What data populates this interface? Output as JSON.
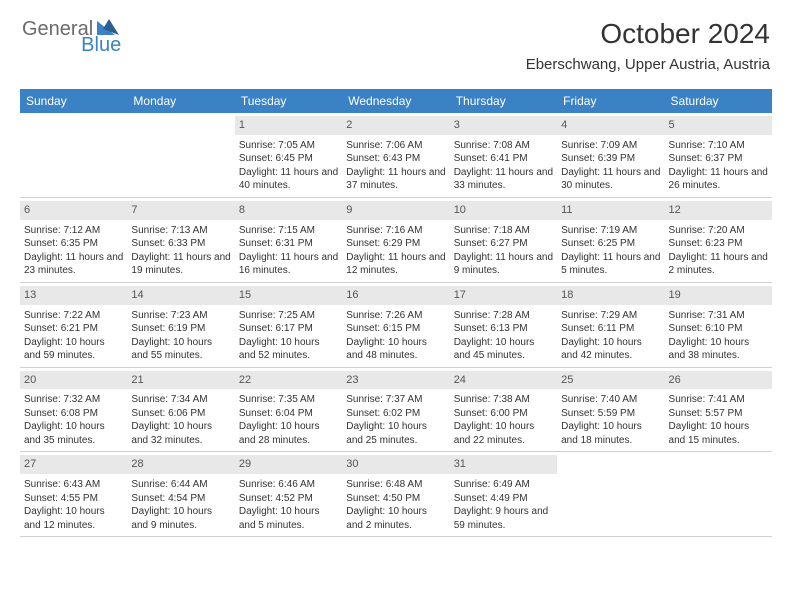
{
  "brand": {
    "part1": "General",
    "part2": "Blue"
  },
  "title": "October 2024",
  "location": "Eberschwang, Upper Austria, Austria",
  "colors": {
    "header_bg": "#3b82c4",
    "header_text": "#ffffff",
    "daynum_bg": "#e8e8e8",
    "border": "#cfcfcf",
    "text": "#333333"
  },
  "daynames": [
    "Sunday",
    "Monday",
    "Tuesday",
    "Wednesday",
    "Thursday",
    "Friday",
    "Saturday"
  ],
  "weeks": [
    [
      {
        "n": "",
        "sr": "",
        "ss": "",
        "dl": ""
      },
      {
        "n": "",
        "sr": "",
        "ss": "",
        "dl": ""
      },
      {
        "n": "1",
        "sr": "Sunrise: 7:05 AM",
        "ss": "Sunset: 6:45 PM",
        "dl": "Daylight: 11 hours and 40 minutes."
      },
      {
        "n": "2",
        "sr": "Sunrise: 7:06 AM",
        "ss": "Sunset: 6:43 PM",
        "dl": "Daylight: 11 hours and 37 minutes."
      },
      {
        "n": "3",
        "sr": "Sunrise: 7:08 AM",
        "ss": "Sunset: 6:41 PM",
        "dl": "Daylight: 11 hours and 33 minutes."
      },
      {
        "n": "4",
        "sr": "Sunrise: 7:09 AM",
        "ss": "Sunset: 6:39 PM",
        "dl": "Daylight: 11 hours and 30 minutes."
      },
      {
        "n": "5",
        "sr": "Sunrise: 7:10 AM",
        "ss": "Sunset: 6:37 PM",
        "dl": "Daylight: 11 hours and 26 minutes."
      }
    ],
    [
      {
        "n": "6",
        "sr": "Sunrise: 7:12 AM",
        "ss": "Sunset: 6:35 PM",
        "dl": "Daylight: 11 hours and 23 minutes."
      },
      {
        "n": "7",
        "sr": "Sunrise: 7:13 AM",
        "ss": "Sunset: 6:33 PM",
        "dl": "Daylight: 11 hours and 19 minutes."
      },
      {
        "n": "8",
        "sr": "Sunrise: 7:15 AM",
        "ss": "Sunset: 6:31 PM",
        "dl": "Daylight: 11 hours and 16 minutes."
      },
      {
        "n": "9",
        "sr": "Sunrise: 7:16 AM",
        "ss": "Sunset: 6:29 PM",
        "dl": "Daylight: 11 hours and 12 minutes."
      },
      {
        "n": "10",
        "sr": "Sunrise: 7:18 AM",
        "ss": "Sunset: 6:27 PM",
        "dl": "Daylight: 11 hours and 9 minutes."
      },
      {
        "n": "11",
        "sr": "Sunrise: 7:19 AM",
        "ss": "Sunset: 6:25 PM",
        "dl": "Daylight: 11 hours and 5 minutes."
      },
      {
        "n": "12",
        "sr": "Sunrise: 7:20 AM",
        "ss": "Sunset: 6:23 PM",
        "dl": "Daylight: 11 hours and 2 minutes."
      }
    ],
    [
      {
        "n": "13",
        "sr": "Sunrise: 7:22 AM",
        "ss": "Sunset: 6:21 PM",
        "dl": "Daylight: 10 hours and 59 minutes."
      },
      {
        "n": "14",
        "sr": "Sunrise: 7:23 AM",
        "ss": "Sunset: 6:19 PM",
        "dl": "Daylight: 10 hours and 55 minutes."
      },
      {
        "n": "15",
        "sr": "Sunrise: 7:25 AM",
        "ss": "Sunset: 6:17 PM",
        "dl": "Daylight: 10 hours and 52 minutes."
      },
      {
        "n": "16",
        "sr": "Sunrise: 7:26 AM",
        "ss": "Sunset: 6:15 PM",
        "dl": "Daylight: 10 hours and 48 minutes."
      },
      {
        "n": "17",
        "sr": "Sunrise: 7:28 AM",
        "ss": "Sunset: 6:13 PM",
        "dl": "Daylight: 10 hours and 45 minutes."
      },
      {
        "n": "18",
        "sr": "Sunrise: 7:29 AM",
        "ss": "Sunset: 6:11 PM",
        "dl": "Daylight: 10 hours and 42 minutes."
      },
      {
        "n": "19",
        "sr": "Sunrise: 7:31 AM",
        "ss": "Sunset: 6:10 PM",
        "dl": "Daylight: 10 hours and 38 minutes."
      }
    ],
    [
      {
        "n": "20",
        "sr": "Sunrise: 7:32 AM",
        "ss": "Sunset: 6:08 PM",
        "dl": "Daylight: 10 hours and 35 minutes."
      },
      {
        "n": "21",
        "sr": "Sunrise: 7:34 AM",
        "ss": "Sunset: 6:06 PM",
        "dl": "Daylight: 10 hours and 32 minutes."
      },
      {
        "n": "22",
        "sr": "Sunrise: 7:35 AM",
        "ss": "Sunset: 6:04 PM",
        "dl": "Daylight: 10 hours and 28 minutes."
      },
      {
        "n": "23",
        "sr": "Sunrise: 7:37 AM",
        "ss": "Sunset: 6:02 PM",
        "dl": "Daylight: 10 hours and 25 minutes."
      },
      {
        "n": "24",
        "sr": "Sunrise: 7:38 AM",
        "ss": "Sunset: 6:00 PM",
        "dl": "Daylight: 10 hours and 22 minutes."
      },
      {
        "n": "25",
        "sr": "Sunrise: 7:40 AM",
        "ss": "Sunset: 5:59 PM",
        "dl": "Daylight: 10 hours and 18 minutes."
      },
      {
        "n": "26",
        "sr": "Sunrise: 7:41 AM",
        "ss": "Sunset: 5:57 PM",
        "dl": "Daylight: 10 hours and 15 minutes."
      }
    ],
    [
      {
        "n": "27",
        "sr": "Sunrise: 6:43 AM",
        "ss": "Sunset: 4:55 PM",
        "dl": "Daylight: 10 hours and 12 minutes."
      },
      {
        "n": "28",
        "sr": "Sunrise: 6:44 AM",
        "ss": "Sunset: 4:54 PM",
        "dl": "Daylight: 10 hours and 9 minutes."
      },
      {
        "n": "29",
        "sr": "Sunrise: 6:46 AM",
        "ss": "Sunset: 4:52 PM",
        "dl": "Daylight: 10 hours and 5 minutes."
      },
      {
        "n": "30",
        "sr": "Sunrise: 6:48 AM",
        "ss": "Sunset: 4:50 PM",
        "dl": "Daylight: 10 hours and 2 minutes."
      },
      {
        "n": "31",
        "sr": "Sunrise: 6:49 AM",
        "ss": "Sunset: 4:49 PM",
        "dl": "Daylight: 9 hours and 59 minutes."
      },
      {
        "n": "",
        "sr": "",
        "ss": "",
        "dl": ""
      },
      {
        "n": "",
        "sr": "",
        "ss": "",
        "dl": ""
      }
    ]
  ]
}
